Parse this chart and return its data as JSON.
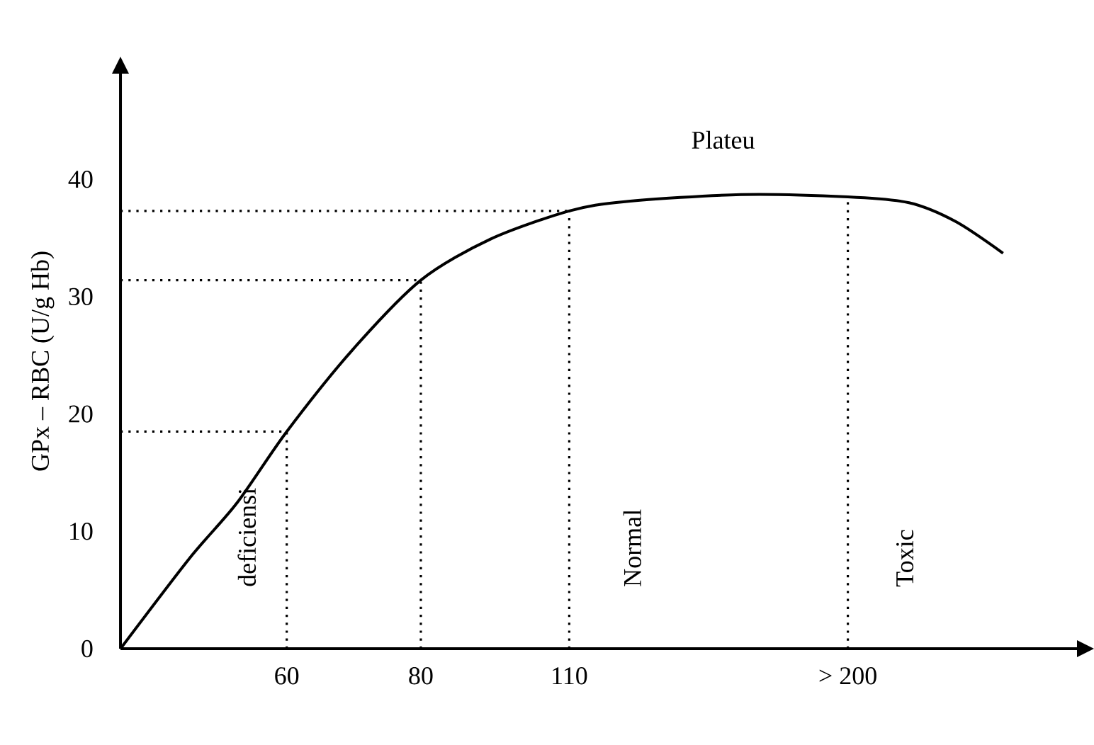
{
  "chart_data": {
    "type": "line",
    "ylabel": "GPx – RBC (U/g Hb)",
    "log": "x",
    "xlim": [
      42,
      327
    ],
    "ylim": [
      0,
      49
    ],
    "xticks": [
      60,
      80,
      110,
      {
        "value": 200,
        "label": "> 200"
      }
    ],
    "yticks": [
      0,
      10,
      20,
      30,
      40
    ],
    "series": [
      {
        "color": "#000000",
        "x": [
          42,
          48.7,
          53.9,
          60,
          69,
          80,
          92.9,
          110,
          124,
          159,
          200,
          228,
          252,
          279
        ],
        "values": [
          0,
          7.7,
          12.4,
          18.5,
          25.4,
          31.4,
          34.9,
          37.3,
          38.1,
          38.7,
          38.5,
          38.0,
          36.4,
          33.7
        ]
      }
    ],
    "ref_lines": [
      {
        "axis": "x",
        "value": 60,
        "line_style": "dotted"
      },
      {
        "axis": "x",
        "value": 80,
        "line_style": "dotted"
      },
      {
        "axis": "x",
        "value": 110,
        "line_style": "dotted"
      },
      {
        "axis": "x",
        "value": 200,
        "line_style": "dotted"
      },
      {
        "axis": "y",
        "value": 18.5,
        "line_style": "dotted"
      },
      {
        "axis": "y",
        "value": 31.4,
        "line_style": "dotted"
      },
      {
        "axis": "y",
        "value": 37.3,
        "line_style": "dotted"
      }
    ],
    "annotations": [
      "deficiensi",
      "Normal",
      "Toxic",
      "Plateu"
    ],
    "grid": false,
    "marker": "none",
    "line_style": "solid"
  }
}
